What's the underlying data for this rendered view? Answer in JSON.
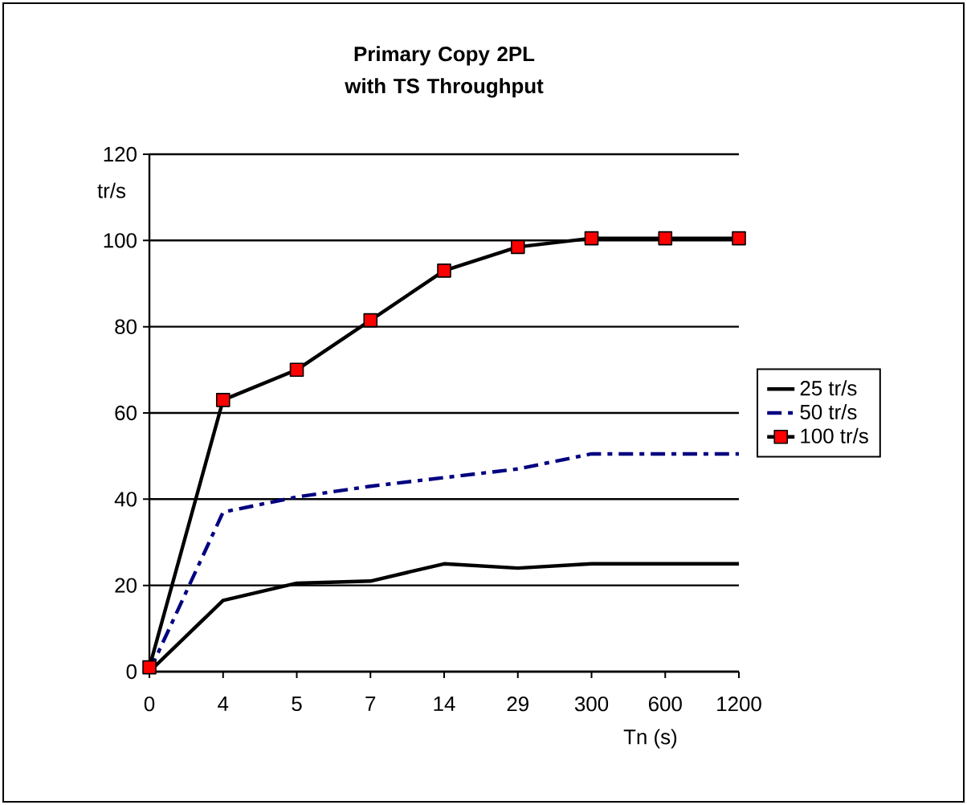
{
  "chart_data": {
    "type": "line",
    "title": "Primary Copy 2PL with TS Throughput",
    "xlabel": "Tn  (s)",
    "ylabel": "tr/s",
    "categories": [
      "0",
      "4",
      "5",
      "7",
      "14",
      "29",
      "300",
      "600",
      "1200"
    ],
    "ylim": [
      0,
      120
    ],
    "yticks": [
      0,
      20,
      40,
      60,
      80,
      100,
      120
    ],
    "grid": "y",
    "legend": "right",
    "series": [
      {
        "name": "25 tr/s",
        "color": "#000000",
        "line_style": "solid",
        "values": [
          0,
          16.5,
          20.5,
          21,
          25,
          24,
          25,
          25,
          25
        ]
      },
      {
        "name": "50 tr/s",
        "color": "#000080",
        "line_style": "dashdot",
        "values": [
          0,
          37,
          40.5,
          43,
          45,
          47,
          50.5,
          50.5,
          50.5
        ]
      },
      {
        "name": "100 tr/s",
        "color": "#000000",
        "line_style": "solid",
        "marker": "square",
        "values": [
          1,
          63,
          70,
          81.5,
          93,
          98.5,
          100.5,
          100.5,
          100.5
        ]
      }
    ]
  }
}
